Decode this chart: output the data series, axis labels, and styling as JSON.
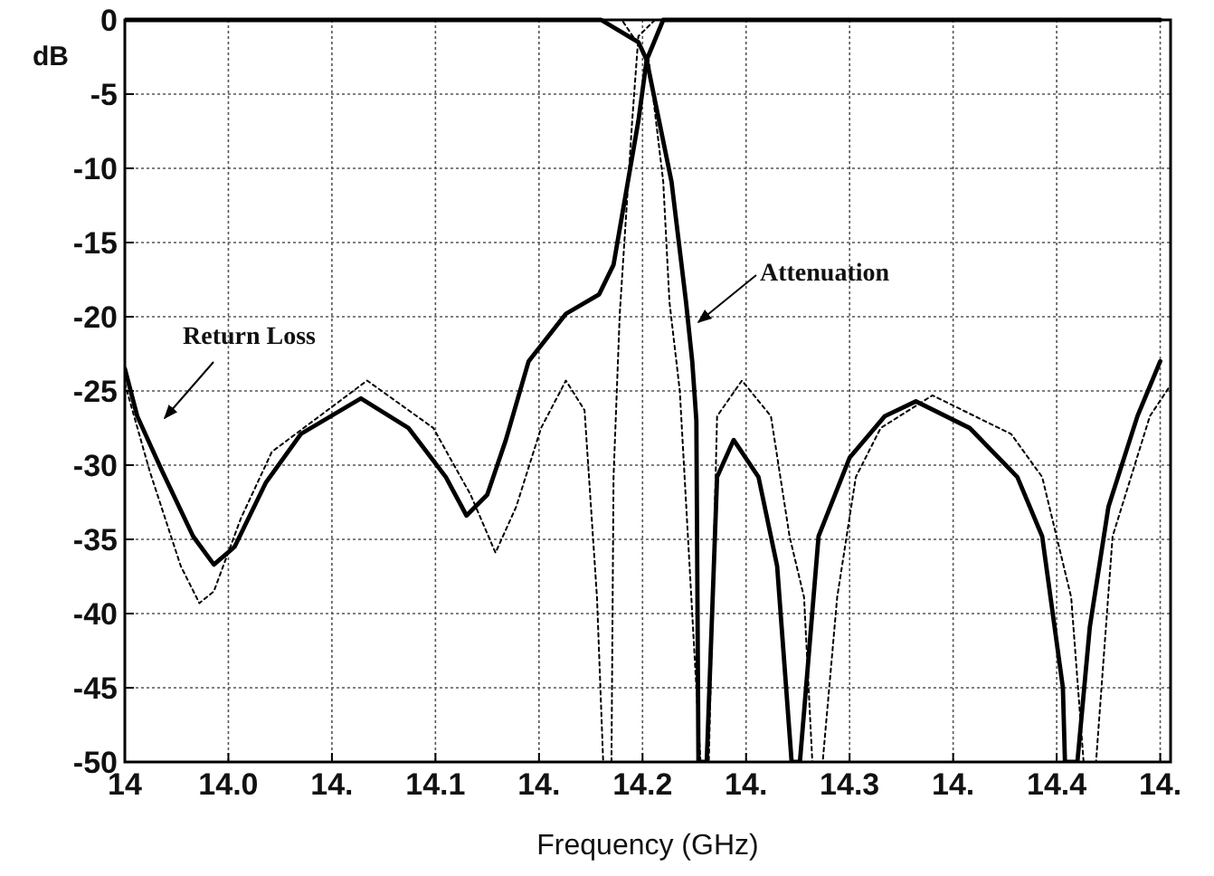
{
  "chart_data": {
    "type": "line",
    "xlabel": "Frequency (GHz)",
    "ylabel": "dB",
    "xlim": [
      13.95,
      14.455
    ],
    "ylim": [
      -50,
      0
    ],
    "xticks": [
      {
        "value": 13.95,
        "label": "14"
      },
      {
        "value": 14.0,
        "label": "14.0"
      },
      {
        "value": 14.05,
        "label": "14."
      },
      {
        "value": 14.1,
        "label": "14.1"
      },
      {
        "value": 14.15,
        "label": "14."
      },
      {
        "value": 14.2,
        "label": "14.2"
      },
      {
        "value": 14.25,
        "label": "14."
      },
      {
        "value": 14.3,
        "label": "14.3"
      },
      {
        "value": 14.35,
        "label": "14."
      },
      {
        "value": 14.4,
        "label": "14.4"
      },
      {
        "value": 14.45,
        "label": "14."
      }
    ],
    "yticks": [
      0,
      -5,
      -10,
      -15,
      -20,
      -25,
      -30,
      -35,
      -40,
      -45,
      -50
    ],
    "grid": true,
    "marker": "none",
    "series": [
      {
        "color": "#000000",
        "line_style": "solid",
        "x": [
          13.95,
          13.956,
          13.968,
          13.983,
          13.993,
          14.003,
          14.018,
          14.035,
          14.064,
          14.087,
          14.105,
          14.115,
          14.125,
          14.134,
          14.145,
          14.163,
          14.179,
          14.186,
          14.198,
          14.202,
          14.21,
          14.45
        ],
        "values": [
          -23.5,
          -26.7,
          -30.4,
          -34.8,
          -36.7,
          -35.5,
          -31.2,
          -27.9,
          -25.5,
          -27.5,
          -30.8,
          -33.4,
          -32,
          -28.3,
          -23,
          -19.8,
          -18.5,
          -16.5,
          -6.8,
          -2.7,
          0,
          0
        ]
      },
      {
        "color": "#000000",
        "line_style": "solid",
        "x": [
          13.95,
          14.18,
          14.198,
          14.202,
          14.214,
          14.221,
          14.224,
          14.226,
          14.227,
          14.231,
          14.236,
          14.244,
          14.256,
          14.265,
          14.272,
          14.276,
          14.285,
          14.3,
          14.317,
          14.332,
          14.358,
          14.381,
          14.393,
          14.403,
          14.404,
          14.41,
          14.416,
          14.425,
          14.439,
          14.45
        ],
        "values": [
          0,
          0,
          -1.5,
          -2.7,
          -10.9,
          -19,
          -23,
          -27,
          -50,
          -50,
          -30.8,
          -28.3,
          -30.8,
          -36.8,
          -50,
          -50,
          -34.8,
          -29.5,
          -26.7,
          -25.7,
          -27.5,
          -30.8,
          -34.8,
          -45,
          -50,
          -50,
          -40.9,
          -32.8,
          -26.7,
          -23
        ]
      },
      {
        "color": "#000000",
        "line_style": "dotted",
        "x": [
          13.95,
          13.962,
          13.977,
          13.986,
          13.993,
          14.006,
          14.021,
          14.067,
          14.099,
          14.117,
          14.129,
          14.139,
          14.151,
          14.163,
          14.172,
          14.178,
          14.181,
          14.185,
          14.186,
          14.189,
          14.195,
          14.198,
          14.206,
          14.45
        ],
        "values": [
          -24.5,
          -30.4,
          -36.8,
          -39.3,
          -38.5,
          -33.6,
          -29.1,
          -24.3,
          -27.5,
          -32,
          -35.9,
          -32.8,
          -27.5,
          -24.3,
          -26.3,
          -38.9,
          -50,
          -50,
          -30.8,
          -19.8,
          -6.8,
          -1.1,
          0,
          0
        ]
      },
      {
        "color": "#000000",
        "line_style": "dotted",
        "x": [
          13.95,
          14.19,
          14.203,
          14.21,
          14.213,
          14.218,
          14.228,
          14.232,
          14.236,
          14.248,
          14.262,
          14.271,
          14.278,
          14.282,
          14.287,
          14.294,
          14.303,
          14.315,
          14.34,
          14.378,
          14.393,
          14.407,
          14.413,
          14.419,
          14.427,
          14.445,
          14.455
        ],
        "values": [
          0,
          0,
          -2.7,
          -10.9,
          -19,
          -25,
          -50,
          -50,
          -26.7,
          -24.3,
          -26.7,
          -34.8,
          -38.9,
          -50,
          -50,
          -38.9,
          -30.8,
          -27.5,
          -25.3,
          -27.9,
          -30.8,
          -38.9,
          -50,
          -50,
          -34.8,
          -26.7,
          -24.6
        ]
      }
    ],
    "annotations": [
      "Return Loss",
      "Attenuation"
    ]
  }
}
